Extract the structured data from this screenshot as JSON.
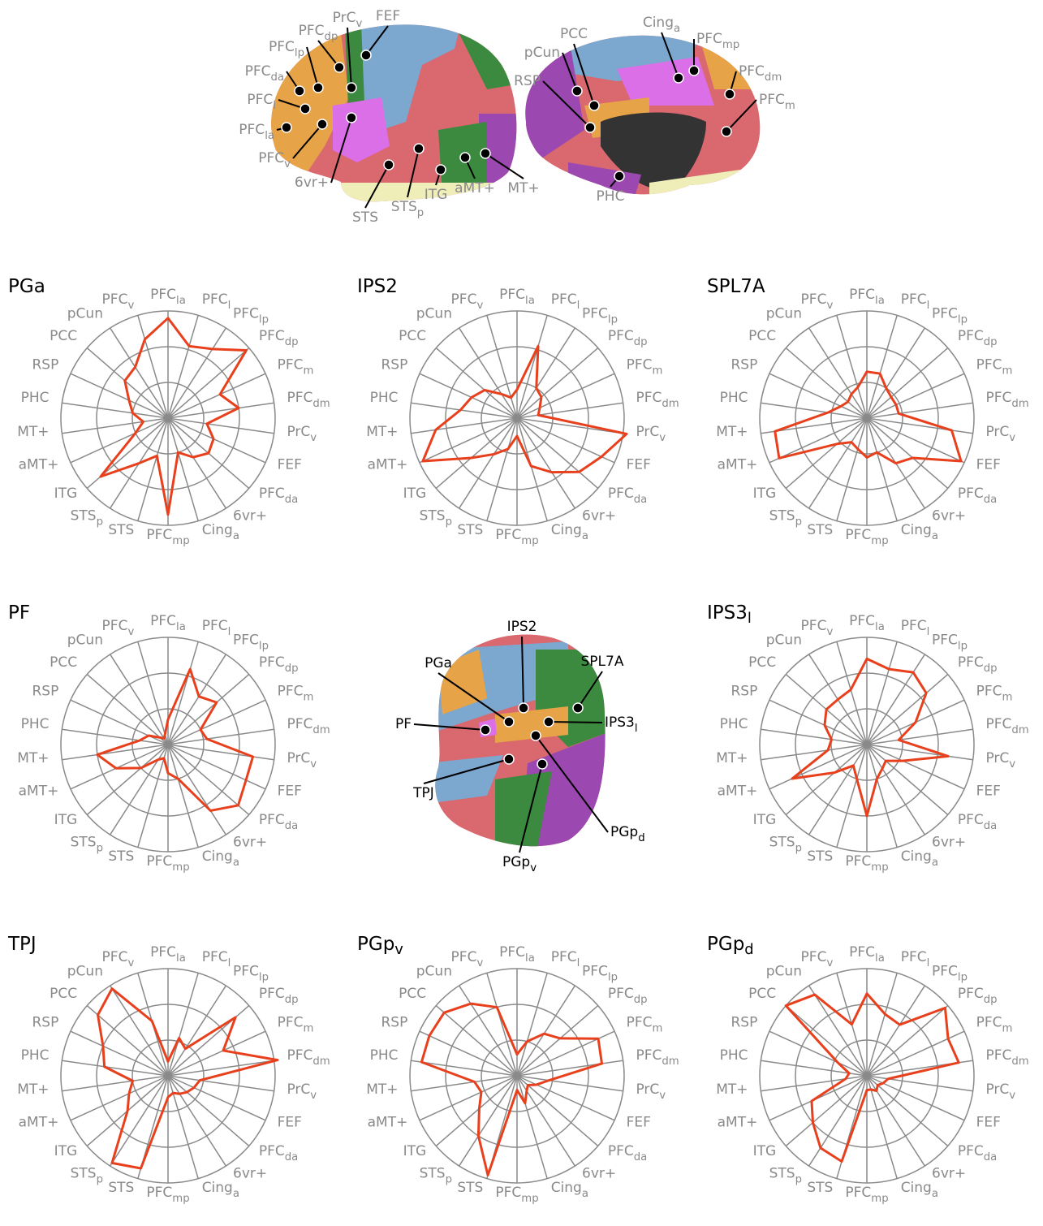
{
  "figure_labels": {
    "lateral": [
      {
        "text": "PrC",
        "sub": "v"
      },
      {
        "text": "FEF"
      },
      {
        "text": "PFC",
        "sub": "dp"
      },
      {
        "text": "PFC",
        "sub": "lp"
      },
      {
        "text": "PFC",
        "sub": "da"
      },
      {
        "text": "PFC",
        "sub": "l"
      },
      {
        "text": "PFC",
        "sub": "la"
      },
      {
        "text": "PFC",
        "sub": "v"
      },
      {
        "text": "6vr+"
      },
      {
        "text": "STS"
      },
      {
        "text": "STS",
        "sub": "p"
      },
      {
        "text": "ITG"
      },
      {
        "text": "aMT+"
      },
      {
        "text": "MT+"
      }
    ],
    "medial": [
      {
        "text": "pCun"
      },
      {
        "text": "RSP"
      },
      {
        "text": "PCC"
      },
      {
        "text": "Cing",
        "sub": "a"
      },
      {
        "text": "PFC",
        "sub": "mp"
      },
      {
        "text": "PFC",
        "sub": "dm"
      },
      {
        "text": "PFC",
        "sub": "m"
      },
      {
        "text": "PHC"
      }
    ],
    "inset": [
      {
        "text": "IPS2"
      },
      {
        "text": "PGa"
      },
      {
        "text": "SPL7A"
      },
      {
        "text": "PF"
      },
      {
        "text": "IPS3",
        "sub": "l"
      },
      {
        "text": "TPJ"
      },
      {
        "text": "PGp",
        "sub": "d"
      },
      {
        "text": "PGp",
        "sub": "v"
      }
    ]
  },
  "chart_data": [
    {
      "type": "radar",
      "title": {
        "text": "PGa"
      },
      "color": "#e8401c",
      "rlim": [
        0,
        3
      ],
      "rticks": [
        1,
        2,
        3
      ],
      "categories": [
        {
          "text": "PFC",
          "sub": "la"
        },
        {
          "text": "PFC",
          "sub": "l"
        },
        {
          "text": "PFC",
          "sub": "lp"
        },
        {
          "text": "PFC",
          "sub": "dp"
        },
        {
          "text": "PFC",
          "sub": "m"
        },
        {
          "text": "PFC",
          "sub": "dm"
        },
        {
          "text": "PrC",
          "sub": "v"
        },
        {
          "text": "FEF"
        },
        {
          "text": "PFC",
          "sub": "da"
        },
        {
          "text": "6vr+"
        },
        {
          "text": "Cing",
          "sub": "a"
        },
        {
          "text": "PFC",
          "sub": "mp"
        },
        {
          "text": "STS"
        },
        {
          "text": "STS",
          "sub": "p"
        },
        {
          "text": "ITG"
        },
        {
          "text": "aMT+"
        },
        {
          "text": "MT+"
        },
        {
          "text": "PHC"
        },
        {
          "text": "RSP"
        },
        {
          "text": "PCC"
        },
        {
          "text": "pCun"
        },
        {
          "text": "PFC",
          "sub": "v"
        }
      ],
      "values": [
        2.8,
        2.1,
        2.3,
        2.9,
        1.6,
        2.0,
        1.1,
        1.4,
        1.5,
        1.3,
        1.0,
        2.7,
        1.1,
        1.5,
        2.5,
        1.0,
        0.7,
        1.0,
        1.2,
        1.6,
        1.7,
        2.3
      ]
    },
    {
      "type": "radar",
      "title": {
        "text": "IPS2"
      },
      "color": "#e8401c",
      "rlim": [
        0,
        3
      ],
      "rticks": [
        1,
        2,
        3
      ],
      "categories": [
        {
          "text": "PFC",
          "sub": "la"
        },
        {
          "text": "PFC",
          "sub": "l"
        },
        {
          "text": "PFC",
          "sub": "lp"
        },
        {
          "text": "PFC",
          "sub": "dp"
        },
        {
          "text": "PFC",
          "sub": "m"
        },
        {
          "text": "PFC",
          "sub": "dm"
        },
        {
          "text": "PrC",
          "sub": "v"
        },
        {
          "text": "FEF"
        },
        {
          "text": "PFC",
          "sub": "da"
        },
        {
          "text": "6vr+"
        },
        {
          "text": "Cing",
          "sub": "a"
        },
        {
          "text": "PFC",
          "sub": "mp"
        },
        {
          "text": "STS"
        },
        {
          "text": "STS",
          "sub": "p"
        },
        {
          "text": "ITG"
        },
        {
          "text": "aMT+"
        },
        {
          "text": "MT+"
        },
        {
          "text": "PHC"
        },
        {
          "text": "RSP"
        },
        {
          "text": "PCC"
        },
        {
          "text": "pCun"
        },
        {
          "text": "PFC",
          "sub": "v"
        }
      ],
      "values": [
        0.8,
        2.1,
        1.0,
        0.9,
        0.7,
        0.6,
        3.1,
        2.6,
        2.3,
        1.8,
        1.4,
        0.5,
        0.9,
        1.2,
        1.7,
        2.9,
        2.3,
        1.6,
        1.4,
        1.2,
        0.8,
        0.6
      ]
    },
    {
      "type": "radar",
      "title": {
        "text": "SPL7A"
      },
      "color": "#e8401c",
      "rlim": [
        0,
        3
      ],
      "rticks": [
        1,
        2,
        3
      ],
      "categories": [
        {
          "text": "PFC",
          "sub": "la"
        },
        {
          "text": "PFC",
          "sub": "l"
        },
        {
          "text": "PFC",
          "sub": "lp"
        },
        {
          "text": "PFC",
          "sub": "dp"
        },
        {
          "text": "PFC",
          "sub": "m"
        },
        {
          "text": "PFC",
          "sub": "dm"
        },
        {
          "text": "PrC",
          "sub": "v"
        },
        {
          "text": "FEF"
        },
        {
          "text": "PFC",
          "sub": "da"
        },
        {
          "text": "6vr+"
        },
        {
          "text": "Cing",
          "sub": "a"
        },
        {
          "text": "PFC",
          "sub": "mp"
        },
        {
          "text": "STS"
        },
        {
          "text": "STS",
          "sub": "p"
        },
        {
          "text": "ITG"
        },
        {
          "text": "aMT+"
        },
        {
          "text": "MT+"
        },
        {
          "text": "PHC"
        },
        {
          "text": "RSP"
        },
        {
          "text": "PCC"
        },
        {
          "text": "pCun"
        },
        {
          "text": "PFC",
          "sub": "v"
        }
      ],
      "values": [
        1.3,
        1.3,
        1.0,
        0.9,
        0.9,
        0.9,
        2.4,
        2.9,
        1.7,
        1.5,
        1.0,
        1.1,
        0.9,
        0.8,
        1.1,
        2.7,
        2.6,
        1.1,
        0.8,
        0.7,
        0.8,
        0.9
      ]
    },
    {
      "type": "radar",
      "title": {
        "text": "PF"
      },
      "color": "#e8401c",
      "rlim": [
        0,
        3
      ],
      "rticks": [
        1,
        2,
        3
      ],
      "categories": [
        {
          "text": "PFC",
          "sub": "la"
        },
        {
          "text": "PFC",
          "sub": "l"
        },
        {
          "text": "PFC",
          "sub": "lp"
        },
        {
          "text": "PFC",
          "sub": "dp"
        },
        {
          "text": "PFC",
          "sub": "m"
        },
        {
          "text": "PFC",
          "sub": "dm"
        },
        {
          "text": "PrC",
          "sub": "v"
        },
        {
          "text": "FEF"
        },
        {
          "text": "PFC",
          "sub": "da"
        },
        {
          "text": "6vr+"
        },
        {
          "text": "Cing",
          "sub": "a"
        },
        {
          "text": "PFC",
          "sub": "mp"
        },
        {
          "text": "STS"
        },
        {
          "text": "STS",
          "sub": "p"
        },
        {
          "text": "ITG"
        },
        {
          "text": "aMT+"
        },
        {
          "text": "MT+"
        },
        {
          "text": "PHC"
        },
        {
          "text": "RSP"
        },
        {
          "text": "PCC"
        },
        {
          "text": "pCun"
        },
        {
          "text": "PFC",
          "sub": "v"
        }
      ],
      "values": [
        0.7,
        2.2,
        1.6,
        1.8,
        1.0,
        1.1,
        2.4,
        2.4,
        2.6,
        2.2,
        1.0,
        0.8,
        0.4,
        0.5,
        1.0,
        1.6,
        2.0,
        0.8,
        0.6,
        0.3,
        0.2,
        0.3
      ]
    },
    {
      "type": "radar",
      "title": {
        "text": "IPS3",
        "sub": "l"
      },
      "color": "#e8401c",
      "rlim": [
        0,
        3
      ],
      "rticks": [
        1,
        2,
        3
      ],
      "categories": [
        {
          "text": "PFC",
          "sub": "la"
        },
        {
          "text": "PFC",
          "sub": "l"
        },
        {
          "text": "PFC",
          "sub": "lp"
        },
        {
          "text": "PFC",
          "sub": "dp"
        },
        {
          "text": "PFC",
          "sub": "m"
        },
        {
          "text": "PFC",
          "sub": "dm"
        },
        {
          "text": "PrC",
          "sub": "v"
        },
        {
          "text": "FEF"
        },
        {
          "text": "PFC",
          "sub": "da"
        },
        {
          "text": "6vr+"
        },
        {
          "text": "Cing",
          "sub": "a"
        },
        {
          "text": "PFC",
          "sub": "mp"
        },
        {
          "text": "STS"
        },
        {
          "text": "STS",
          "sub": "p"
        },
        {
          "text": "ITG"
        },
        {
          "text": "aMT+"
        },
        {
          "text": "MT+"
        },
        {
          "text": "PHC"
        },
        {
          "text": "RSP"
        },
        {
          "text": "PCC"
        },
        {
          "text": "pCun"
        },
        {
          "text": "PFC",
          "sub": "v"
        }
      ],
      "values": [
        2.4,
        2.2,
        2.4,
        2.2,
        1.5,
        0.9,
        2.3,
        1.1,
        0.7,
        0.8,
        1.0,
        2.0,
        1.0,
        0.7,
        1.2,
        2.3,
        1.1,
        1.0,
        1.3,
        1.5,
        1.5,
        1.6
      ]
    },
    {
      "type": "radar",
      "title": {
        "text": "TPJ"
      },
      "color": "#e8401c",
      "rlim": [
        0,
        3
      ],
      "rticks": [
        1,
        2,
        3
      ],
      "categories": [
        {
          "text": "PFC",
          "sub": "la"
        },
        {
          "text": "PFC",
          "sub": "l"
        },
        {
          "text": "PFC",
          "sub": "lp"
        },
        {
          "text": "PFC",
          "sub": "dp"
        },
        {
          "text": "PFC",
          "sub": "m"
        },
        {
          "text": "PFC",
          "sub": "dm"
        },
        {
          "text": "PrC",
          "sub": "v"
        },
        {
          "text": "FEF"
        },
        {
          "text": "PFC",
          "sub": "da"
        },
        {
          "text": "6vr+"
        },
        {
          "text": "Cing",
          "sub": "a"
        },
        {
          "text": "PFC",
          "sub": "mp"
        },
        {
          "text": "STS"
        },
        {
          "text": "STS",
          "sub": "p"
        },
        {
          "text": "ITG"
        },
        {
          "text": "aMT+"
        },
        {
          "text": "MT+"
        },
        {
          "text": "PHC"
        },
        {
          "text": "RSP"
        },
        {
          "text": "PCC"
        },
        {
          "text": "pCun"
        },
        {
          "text": "PFC",
          "sub": "v"
        }
      ],
      "values": [
        0.4,
        1.1,
        0.9,
        2.5,
        1.7,
        3.1,
        0.9,
        0.8,
        0.7,
        0.6,
        0.5,
        0.6,
        2.7,
        2.9,
        1.5,
        1.2,
        1.0,
        1.8,
        2.0,
        2.6,
        2.9,
        1.6
      ]
    },
    {
      "type": "radar",
      "title": {
        "text": "PGp",
        "sub": "v"
      },
      "color": "#e8401c",
      "rlim": [
        0,
        3
      ],
      "rticks": [
        1,
        2,
        3
      ],
      "categories": [
        {
          "text": "PFC",
          "sub": "la"
        },
        {
          "text": "PFC",
          "sub": "l"
        },
        {
          "text": "PFC",
          "sub": "lp"
        },
        {
          "text": "PFC",
          "sub": "dp"
        },
        {
          "text": "PFC",
          "sub": "m"
        },
        {
          "text": "PFC",
          "sub": "dm"
        },
        {
          "text": "PrC",
          "sub": "v"
        },
        {
          "text": "FEF"
        },
        {
          "text": "PFC",
          "sub": "da"
        },
        {
          "text": "6vr+"
        },
        {
          "text": "Cing",
          "sub": "a"
        },
        {
          "text": "PFC",
          "sub": "mp"
        },
        {
          "text": "STS"
        },
        {
          "text": "STS",
          "sub": "p"
        },
        {
          "text": "ITG"
        },
        {
          "text": "aMT+"
        },
        {
          "text": "MT+"
        },
        {
          "text": "PHC"
        },
        {
          "text": "RSP"
        },
        {
          "text": "PCC"
        },
        {
          "text": "pCun"
        },
        {
          "text": "PFC",
          "sub": "v"
        }
      ],
      "values": [
        0.6,
        1.0,
        1.4,
        1.6,
        2.5,
        2.4,
        0.9,
        0.6,
        0.4,
        0.5,
        0.8,
        0.4,
        2.9,
        2.0,
        1.4,
        1.1,
        1.2,
        2.7,
        2.7,
        2.7,
        2.4,
        2.0
      ]
    },
    {
      "type": "radar",
      "title": {
        "text": "PGp",
        "sub": "d"
      },
      "color": "#e8401c",
      "rlim": [
        0,
        3
      ],
      "rticks": [
        1,
        2,
        3
      ],
      "categories": [
        {
          "text": "PFC",
          "sub": "la"
        },
        {
          "text": "PFC",
          "sub": "l"
        },
        {
          "text": "PFC",
          "sub": "lp"
        },
        {
          "text": "PFC",
          "sub": "dp"
        },
        {
          "text": "PFC",
          "sub": "m"
        },
        {
          "text": "PFC",
          "sub": "dm"
        },
        {
          "text": "PrC",
          "sub": "v"
        },
        {
          "text": "FEF"
        },
        {
          "text": "PFC",
          "sub": "da"
        },
        {
          "text": "6vr+"
        },
        {
          "text": "Cing",
          "sub": "a"
        },
        {
          "text": "PFC",
          "sub": "mp"
        },
        {
          "text": "STS"
        },
        {
          "text": "STS",
          "sub": "p"
        },
        {
          "text": "ITG"
        },
        {
          "text": "aMT+"
        },
        {
          "text": "MT+"
        },
        {
          "text": "PHC"
        },
        {
          "text": "RSP"
        },
        {
          "text": "PCC"
        },
        {
          "text": "pCun"
        },
        {
          "text": "PFC",
          "sub": "v"
        }
      ],
      "values": [
        2.3,
        1.8,
        1.7,
        2.9,
        2.5,
        2.6,
        0.6,
        0.5,
        0.4,
        0.5,
        0.4,
        0.4,
        2.5,
        2.4,
        2.0,
        1.7,
        0.6,
        0.5,
        0.9,
        3.0,
        2.7,
        1.5
      ]
    }
  ]
}
